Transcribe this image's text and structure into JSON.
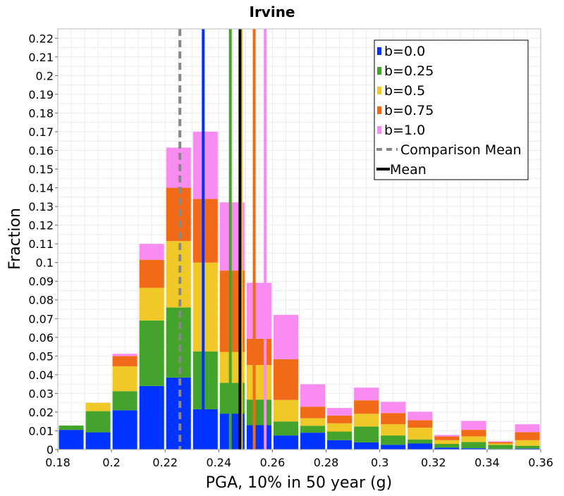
{
  "chart_data": {
    "type": "bar",
    "stacked": true,
    "title": "Irvine",
    "xlabel": "PGA, 10% in 50 year (g)",
    "ylabel": "Fraction",
    "xlim": [
      0.18,
      0.36
    ],
    "ylim": [
      0,
      0.225
    ],
    "grid": true,
    "legend_position": "top-right",
    "bin_width": 0.01,
    "bin_starts": [
      0.18,
      0.19,
      0.2,
      0.21,
      0.22,
      0.23,
      0.24,
      0.25,
      0.26,
      0.27,
      0.28,
      0.29,
      0.3,
      0.31,
      0.32,
      0.33,
      0.34,
      0.35
    ],
    "x_ticks": [
      0.18,
      0.2,
      0.22,
      0.24,
      0.26,
      0.28,
      0.3,
      0.32,
      0.34,
      0.36
    ],
    "x_tick_labels": [
      "0.18",
      "0.2",
      "0.22",
      "0.24",
      "0.26",
      "0.28",
      "0.3",
      "0.32",
      "0.34",
      "0.36"
    ],
    "y_ticks": [
      0,
      0.01,
      0.02,
      0.03,
      0.04,
      0.05,
      0.06,
      0.07,
      0.08,
      0.09,
      0.1,
      0.11,
      0.12,
      0.13,
      0.14,
      0.15,
      0.16,
      0.17,
      0.18,
      0.19,
      0.2,
      0.21,
      0.22
    ],
    "y_tick_labels": [
      "0",
      "0.01",
      "0.02",
      "0.03",
      "0.04",
      "0.05",
      "0.06",
      "0.07",
      "0.08",
      "0.09",
      "0.1",
      "0.11",
      "0.12",
      "0.13",
      "0.14",
      "0.15",
      "0.16",
      "0.17",
      "0.18",
      "0.19",
      "0.2",
      "0.21",
      "0.22"
    ],
    "series": [
      {
        "name": "b=0.0",
        "color": "#0033ff",
        "values": [
          0.0105,
          0.0092,
          0.021,
          0.034,
          0.0385,
          0.0215,
          0.0192,
          0.013,
          0.0075,
          0.009,
          0.005,
          0.0038,
          0.0025,
          0.0032,
          0.001,
          0.0007,
          0.0003,
          0.0005
        ]
      },
      {
        "name": "b=0.25",
        "color": "#44a32a",
        "values": [
          0.0023,
          0.0113,
          0.0102,
          0.035,
          0.0375,
          0.031,
          0.0165,
          0.0137,
          0.0075,
          0.0037,
          0.0046,
          0.0085,
          0.005,
          0.0022,
          0.002,
          0.0033,
          0.0022,
          0.0015
        ]
      },
      {
        "name": "b=0.5",
        "color": "#f0c828",
        "values": [
          0.0,
          0.0045,
          0.0133,
          0.0175,
          0.0355,
          0.0475,
          0.0165,
          0.0185,
          0.0115,
          0.004,
          0.0044,
          0.0068,
          0.006,
          0.0063,
          0.002,
          0.003,
          0.0007,
          0.003
        ]
      },
      {
        "name": "b=0.75",
        "color": "#f06a18",
        "values": [
          0.0,
          0.0,
          0.0055,
          0.015,
          0.0285,
          0.034,
          0.0435,
          0.014,
          0.0218,
          0.0062,
          0.0042,
          0.0072,
          0.006,
          0.004,
          0.002,
          0.0035,
          0.0008,
          0.0043
        ]
      },
      {
        "name": "b=1.0",
        "color": "#f88cf0",
        "values": [
          0.0,
          0.0,
          0.0012,
          0.0085,
          0.0215,
          0.036,
          0.0365,
          0.03,
          0.0237,
          0.012,
          0.004,
          0.0068,
          0.006,
          0.0045,
          0.0008,
          0.0048,
          0.0004,
          0.0042
        ]
      }
    ],
    "vertical_lines": [
      {
        "name": "b=0.0 mean",
        "x": 0.2342,
        "color": "#0033ff",
        "style": "solid"
      },
      {
        "name": "b=0.25 mean",
        "x": 0.2443,
        "color": "#44a32a",
        "style": "solid"
      },
      {
        "name": "b=0.5 mean",
        "x": 0.2484,
        "color": "#f0c828",
        "style": "solid"
      },
      {
        "name": "b=0.75 mean",
        "x": 0.2532,
        "color": "#f06a18",
        "style": "solid"
      },
      {
        "name": "b=1.0 mean",
        "x": 0.2573,
        "color": "#f88cf0",
        "style": "solid"
      },
      {
        "name": "Comparison Mean",
        "x": 0.2255,
        "color": "#888888",
        "style": "dashed"
      },
      {
        "name": "Mean",
        "x": 0.2479,
        "color": "#000000",
        "style": "solid"
      }
    ],
    "legend": [
      {
        "label": "b=0.0",
        "color": "#0033ff",
        "marker": "box"
      },
      {
        "label": "b=0.25",
        "color": "#44a32a",
        "marker": "box"
      },
      {
        "label": "b=0.5",
        "color": "#f0c828",
        "marker": "box"
      },
      {
        "label": "b=0.75",
        "color": "#f06a18",
        "marker": "box"
      },
      {
        "label": "b=1.0",
        "color": "#f88cf0",
        "marker": "box"
      },
      {
        "label": "Comparison Mean",
        "color": "#888888",
        "marker": "dashed"
      },
      {
        "label": "Mean",
        "color": "#000000",
        "marker": "line"
      }
    ]
  }
}
